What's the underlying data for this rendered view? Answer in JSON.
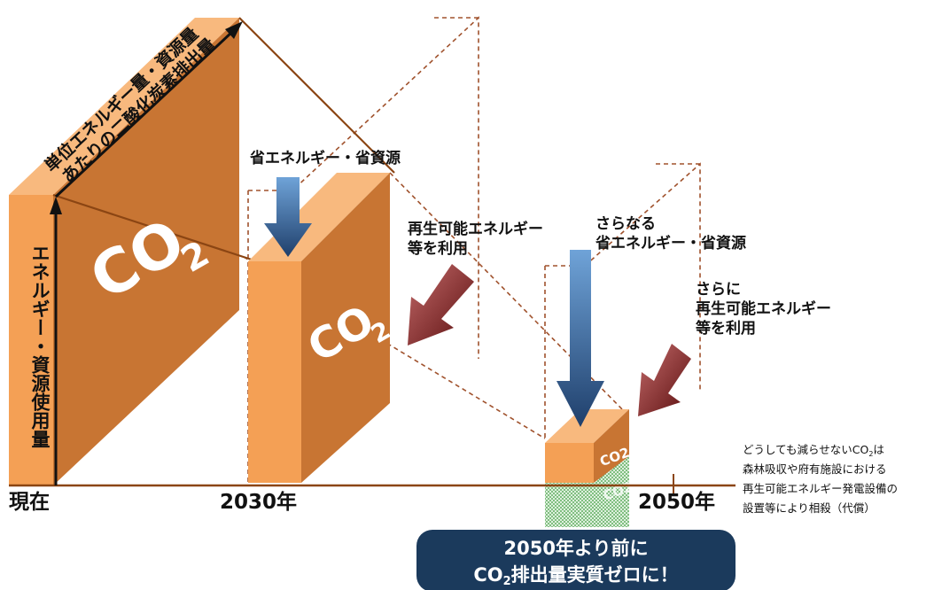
{
  "axis": {
    "vertical_label": "エネルギー・資源使用量",
    "diagonal_line1": "単位エネルギー量・資源量",
    "diagonal_line2": "あたりの二酸化炭素排出量",
    "x_labels": [
      "現在",
      "2030年",
      "2050年"
    ]
  },
  "co2_text": "CO",
  "co2_sub": "2",
  "co2_small": "CO2",
  "arrows": {
    "saving_1": "省エネルギー・省資源",
    "renew_1_line1": "再生可能エネルギー",
    "renew_1_line2": "等を利用",
    "saving_2_line1": "さらなる",
    "saving_2_line2": "省エネルギー・省資源",
    "renew_2_line1": "さらに",
    "renew_2_line2": "再生可能エネルギー",
    "renew_2_line3": "等を利用"
  },
  "note": {
    "line1_pre": "どうしても減らせないCO",
    "line1_sub": "2",
    "line1_post": "は",
    "line2": "森林吸収や府有施設における",
    "line3": "再生可能エネルギー発電設備の",
    "line4": "設置等により相殺（代償）"
  },
  "goal": {
    "line1": "2050年より前に",
    "line2_pre": "CO",
    "line2_sub": "2",
    "line2_post": "排出量実質ゼロに！"
  },
  "colors": {
    "box_front": "#F4A055",
    "box_side": "#C87533",
    "box_top": "#F8B97E",
    "dashed": "#A0522D",
    "blue_arrow": "#1F4E79",
    "red_arrow": "#7B1A1A",
    "green_offset": "#3E9B3E",
    "goal_bg": "#1B3A5C"
  }
}
